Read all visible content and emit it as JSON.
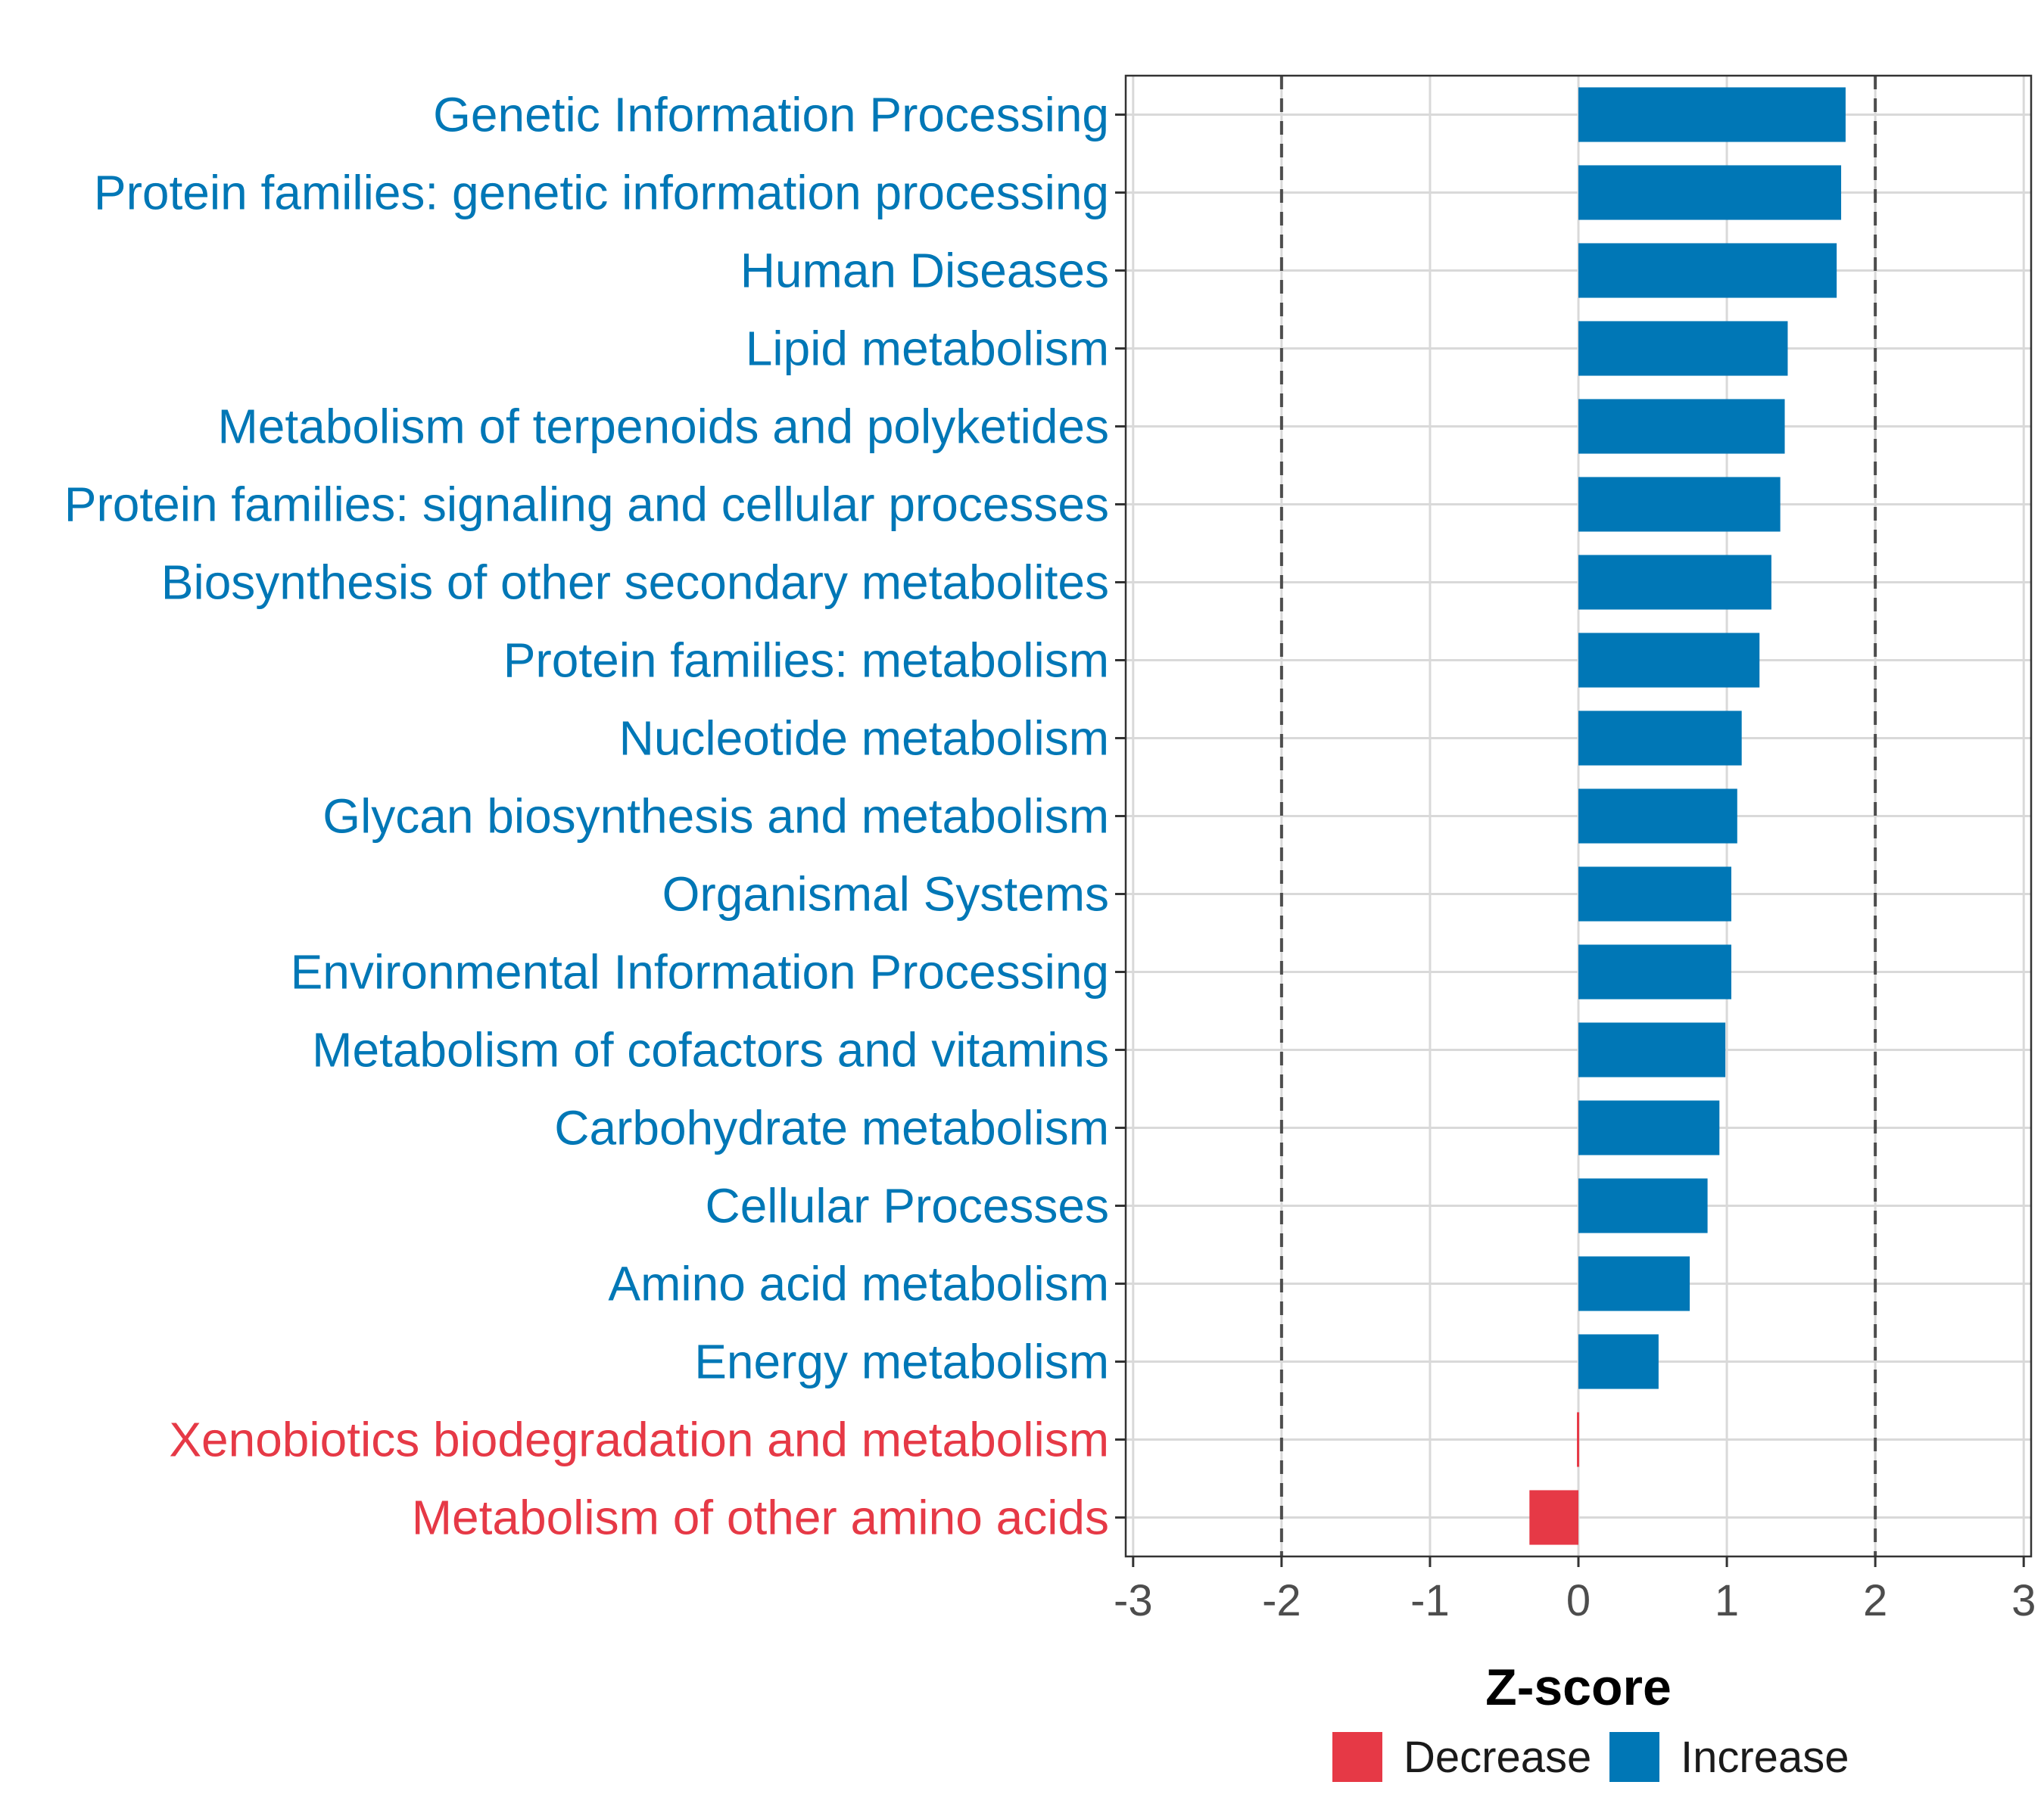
{
  "chart_data": {
    "type": "bar",
    "orientation": "horizontal",
    "title": "",
    "xlabel": "Z-score",
    "ylabel": "",
    "xlim": [
      -3.05,
      3.05
    ],
    "xticks": [
      -3,
      -2,
      -1,
      0,
      1,
      2,
      3
    ],
    "xtick_labels": [
      "-3",
      "-2",
      "-1",
      "0",
      "1",
      "2",
      "3"
    ],
    "reference_lines": [
      -2,
      2
    ],
    "grid": true,
    "categories": [
      "Genetic Information Processing",
      "Protein families: genetic information processing",
      "Human Diseases",
      "Lipid metabolism",
      "Metabolism of terpenoids and polyketides",
      "Protein families: signaling and cellular processes",
      "Biosynthesis of other secondary metabolites",
      "Protein families: metabolism",
      "Nucleotide metabolism",
      "Glycan biosynthesis and metabolism",
      "Organismal Systems",
      "Environmental Information Processing",
      "Metabolism of cofactors and vitamins",
      "Carbohydrate metabolism",
      "Cellular Processes",
      "Amino acid metabolism",
      "Energy metabolism",
      "Xenobiotics biodegradation and metabolism",
      "Metabolism of other amino acids"
    ],
    "values": [
      1.8,
      1.77,
      1.74,
      1.41,
      1.39,
      1.36,
      1.3,
      1.22,
      1.1,
      1.07,
      1.03,
      1.03,
      0.99,
      0.95,
      0.87,
      0.75,
      0.54,
      -0.01,
      -0.33
    ],
    "legend": {
      "position": "bottom",
      "entries": [
        {
          "label": "Decrease",
          "color": "#E63946"
        },
        {
          "label": "Increase",
          "color": "#0077B6"
        }
      ]
    }
  }
}
